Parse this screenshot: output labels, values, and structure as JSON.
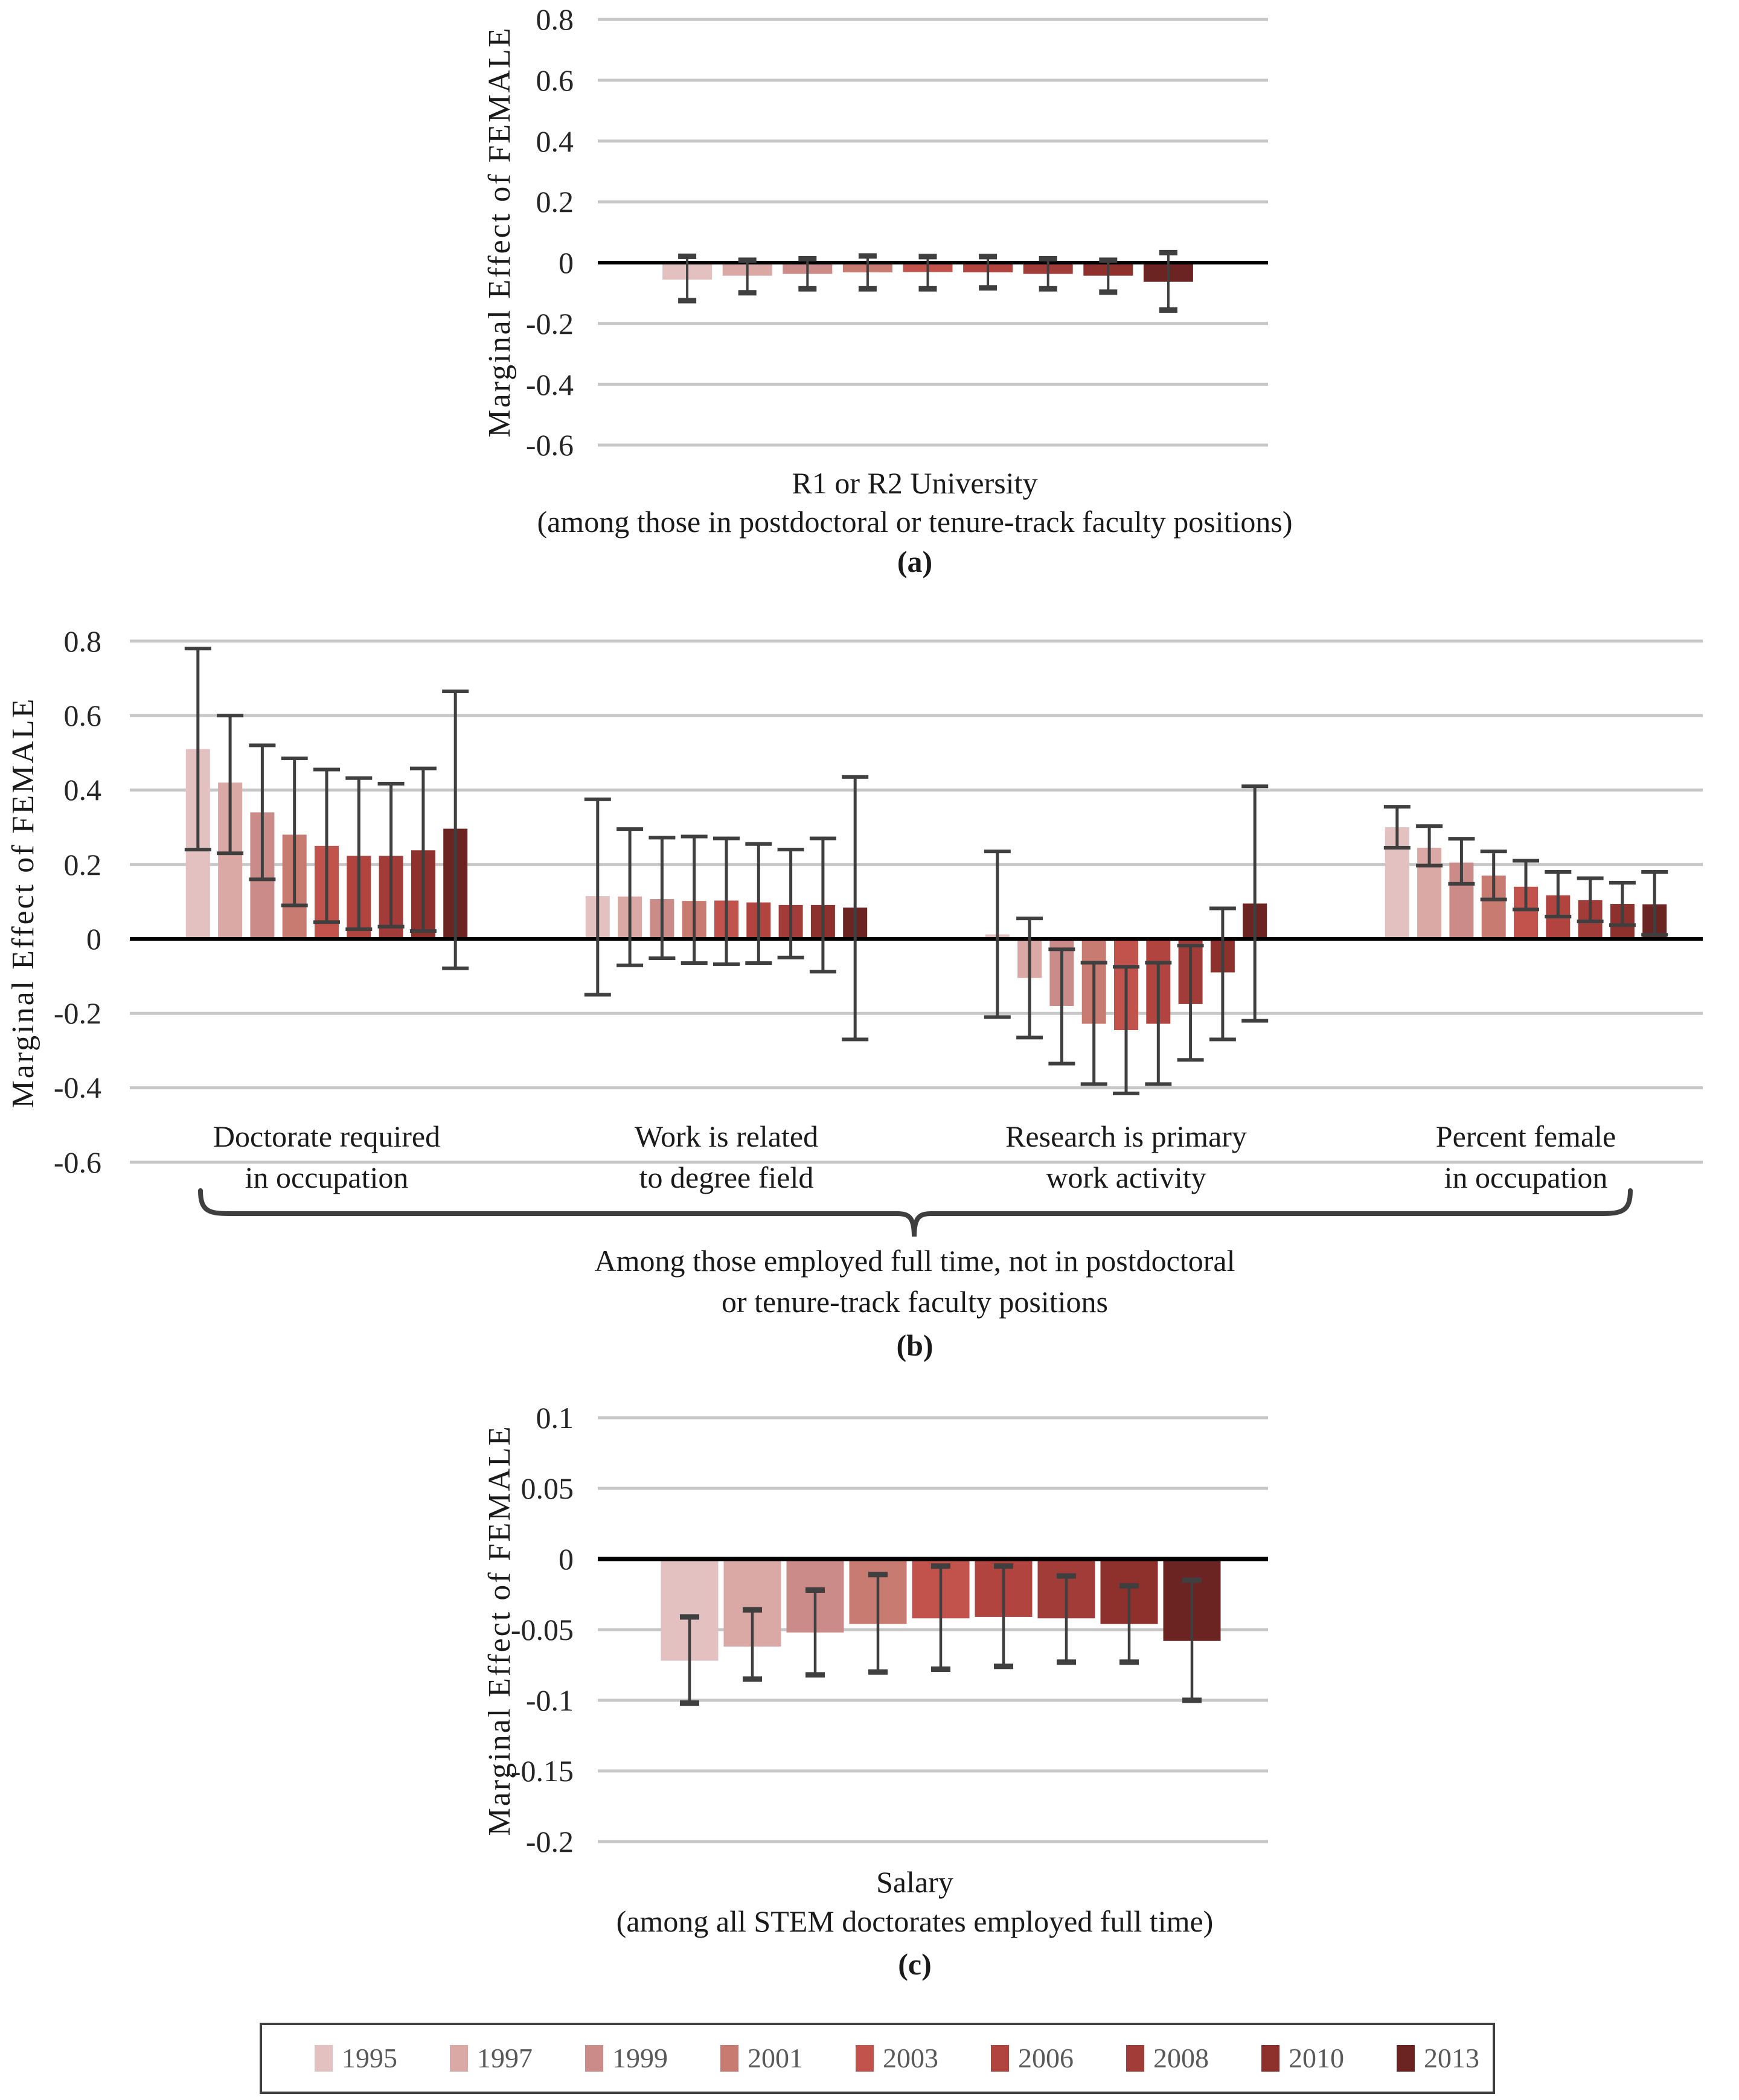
{
  "figure": {
    "y_axis_title": "Marginal Effect of FEMALE"
  },
  "legend": {
    "items": [
      {
        "label": "1995",
        "color": "#E3C1C0"
      },
      {
        "label": "1997",
        "color": "#DAA8A5"
      },
      {
        "label": "1999",
        "color": "#CB8C89"
      },
      {
        "label": "2001",
        "color": "#C87B70"
      },
      {
        "label": "2003",
        "color": "#C1534C"
      },
      {
        "label": "2006",
        "color": "#B2443F"
      },
      {
        "label": "2008",
        "color": "#A23C39"
      },
      {
        "label": "2010",
        "color": "#8E302C"
      },
      {
        "label": "2013",
        "color": "#6C2423"
      }
    ]
  },
  "chart_data": [
    {
      "id": "a",
      "type": "bar",
      "panel_label": "(a)",
      "title": "R1 or R2 University",
      "subtitle": "(among those in postdoctoral or tenure-track faculty positions)",
      "ylabel": "Marginal Effect of FEMALE",
      "ylim": [
        -0.6,
        0.8
      ],
      "yticks": [
        "0.8",
        "0.6",
        "0.4",
        "0.2",
        "0",
        "-0.2",
        "-0.4",
        "-0.6"
      ],
      "grid": true,
      "error_bars": true,
      "categories": [
        "R1 or R2 University"
      ],
      "series": [
        {
          "name": "1995",
          "values": [
            -0.056
          ],
          "ci_low": [
            -0.125
          ],
          "ci_high": [
            0.021
          ]
        },
        {
          "name": "1997",
          "values": [
            -0.043
          ],
          "ci_low": [
            -0.099
          ],
          "ci_high": [
            0.008
          ]
        },
        {
          "name": "1999",
          "values": [
            -0.037
          ],
          "ci_low": [
            -0.086
          ],
          "ci_high": [
            0.013
          ]
        },
        {
          "name": "2001",
          "values": [
            -0.032
          ],
          "ci_low": [
            -0.086
          ],
          "ci_high": [
            0.022
          ]
        },
        {
          "name": "2003",
          "values": [
            -0.031
          ],
          "ci_low": [
            -0.086
          ],
          "ci_high": [
            0.02
          ]
        },
        {
          "name": "2006",
          "values": [
            -0.032
          ],
          "ci_low": [
            -0.083
          ],
          "ci_high": [
            0.02
          ]
        },
        {
          "name": "2008",
          "values": [
            -0.037
          ],
          "ci_low": [
            -0.086
          ],
          "ci_high": [
            0.013
          ]
        },
        {
          "name": "2010",
          "values": [
            -0.043
          ],
          "ci_low": [
            -0.097
          ],
          "ci_high": [
            0.008
          ]
        },
        {
          "name": "2013",
          "values": [
            -0.063
          ],
          "ci_low": [
            -0.156
          ],
          "ci_high": [
            0.033
          ]
        }
      ]
    },
    {
      "id": "b",
      "type": "bar",
      "panel_label": "(b)",
      "ylabel": "Marginal Effect of FEMALE",
      "ylim": [
        -0.6,
        0.8
      ],
      "yticks": [
        "0.8",
        "0.6",
        "0.4",
        "0.2",
        "0",
        "-0.2",
        "-0.4",
        "-0.6"
      ],
      "grid": true,
      "error_bars": true,
      "categories": [
        "Doctorate required in occupation",
        "Work is related to degree field",
        "Research is primary work activity",
        "Percent female in occupation"
      ],
      "groups": [
        {
          "lines": [
            "Doctorate required",
            "in occupation"
          ]
        },
        {
          "lines": [
            "Work is related",
            "to degree field"
          ]
        },
        {
          "lines": [
            "Research is primary",
            "work activity"
          ]
        },
        {
          "lines": [
            "Percent female",
            "in occupation"
          ]
        }
      ],
      "annotation": {
        "lines": [
          "Among those employed full time, not in  postdoctoral",
          "or tenure-track faculty positions"
        ]
      },
      "series": [
        {
          "name": "1995",
          "values": [
            0.51,
            0.115,
            0.012,
            0.3
          ],
          "ci_low": [
            0.24,
            -0.15,
            -0.21,
            0.245
          ],
          "ci_high": [
            0.78,
            0.375,
            0.235,
            0.355
          ]
        },
        {
          "name": "1997",
          "values": [
            0.42,
            0.114,
            -0.105,
            0.245
          ],
          "ci_low": [
            0.23,
            -0.071,
            -0.265,
            0.197
          ],
          "ci_high": [
            0.6,
            0.295,
            0.055,
            0.303
          ]
        },
        {
          "name": "1999",
          "values": [
            0.34,
            0.107,
            -0.18,
            0.205
          ],
          "ci_low": [
            0.16,
            -0.052,
            -0.335,
            0.148
          ],
          "ci_high": [
            0.52,
            0.272,
            -0.028,
            0.269
          ]
        },
        {
          "name": "2001",
          "values": [
            0.28,
            0.102,
            -0.228,
            0.17
          ],
          "ci_low": [
            0.09,
            -0.065,
            -0.39,
            0.106
          ],
          "ci_high": [
            0.485,
            0.275,
            -0.064,
            0.235
          ]
        },
        {
          "name": "2003",
          "values": [
            0.25,
            0.103,
            -0.245,
            0.14
          ],
          "ci_low": [
            0.045,
            -0.068,
            -0.415,
            0.079
          ],
          "ci_high": [
            0.455,
            0.27,
            -0.075,
            0.21
          ]
        },
        {
          "name": "2006",
          "values": [
            0.223,
            0.098,
            -0.228,
            0.117
          ],
          "ci_low": [
            0.026,
            -0.065,
            -0.39,
            0.06
          ],
          "ci_high": [
            0.432,
            0.255,
            -0.064,
            0.18
          ]
        },
        {
          "name": "2008",
          "values": [
            0.223,
            0.091,
            -0.175,
            0.104
          ],
          "ci_low": [
            0.033,
            -0.05,
            -0.325,
            0.047
          ],
          "ci_high": [
            0.417,
            0.24,
            -0.018,
            0.163
          ]
        },
        {
          "name": "2010",
          "values": [
            0.238,
            0.091,
            -0.09,
            0.094
          ],
          "ci_low": [
            0.021,
            -0.088,
            -0.27,
            0.037
          ],
          "ci_high": [
            0.458,
            0.27,
            0.082,
            0.151
          ]
        },
        {
          "name": "2013",
          "values": [
            0.296,
            0.084,
            0.095,
            0.093
          ],
          "ci_low": [
            -0.079,
            -0.27,
            -0.22,
            0.011
          ],
          "ci_high": [
            0.665,
            0.435,
            0.41,
            0.18
          ]
        }
      ]
    },
    {
      "id": "c",
      "type": "bar",
      "panel_label": "(c)",
      "title": "Salary",
      "subtitle": "(among all STEM doctorates employed full time)",
      "ylabel": "Marginal Effect of FEMALE",
      "ylim": [
        -0.2,
        0.1
      ],
      "yticks": [
        "0.1",
        "0.05",
        "0",
        "-0.05",
        "-0.1",
        "-0.15",
        "-0.2"
      ],
      "grid": true,
      "error_bars": true,
      "categories": [
        "Salary"
      ],
      "series": [
        {
          "name": "1995",
          "values": [
            -0.072
          ],
          "ci_low": [
            -0.102
          ],
          "ci_high": [
            -0.041
          ]
        },
        {
          "name": "1997",
          "values": [
            -0.062
          ],
          "ci_low": [
            -0.085
          ],
          "ci_high": [
            -0.036
          ]
        },
        {
          "name": "1999",
          "values": [
            -0.052
          ],
          "ci_low": [
            -0.082
          ],
          "ci_high": [
            -0.022
          ]
        },
        {
          "name": "2001",
          "values": [
            -0.046
          ],
          "ci_low": [
            -0.08
          ],
          "ci_high": [
            -0.011
          ]
        },
        {
          "name": "2003",
          "values": [
            -0.042
          ],
          "ci_low": [
            -0.078
          ],
          "ci_high": [
            -0.005
          ]
        },
        {
          "name": "2006",
          "values": [
            -0.041
          ],
          "ci_low": [
            -0.076
          ],
          "ci_high": [
            -0.005
          ]
        },
        {
          "name": "2008",
          "values": [
            -0.042
          ],
          "ci_low": [
            -0.073
          ],
          "ci_high": [
            -0.012
          ]
        },
        {
          "name": "2010",
          "values": [
            -0.046
          ],
          "ci_low": [
            -0.073
          ],
          "ci_high": [
            -0.019
          ]
        },
        {
          "name": "2013",
          "values": [
            -0.058
          ],
          "ci_low": [
            -0.1
          ],
          "ci_high": [
            -0.015
          ]
        }
      ]
    }
  ]
}
